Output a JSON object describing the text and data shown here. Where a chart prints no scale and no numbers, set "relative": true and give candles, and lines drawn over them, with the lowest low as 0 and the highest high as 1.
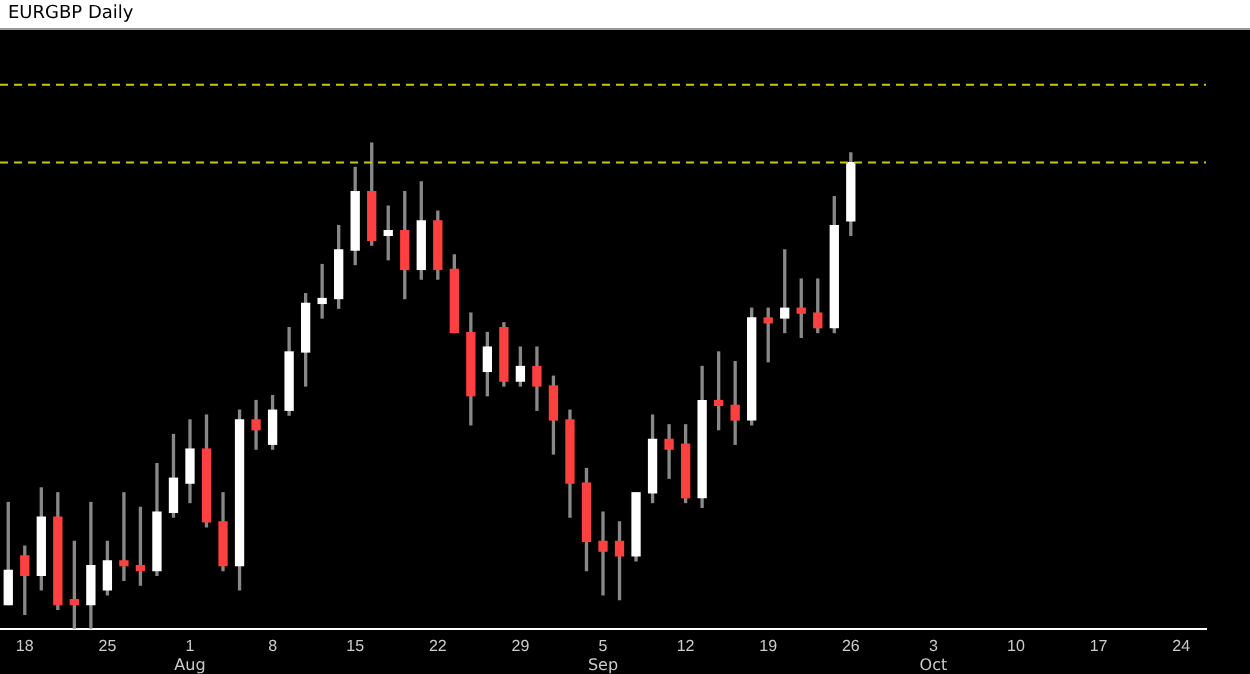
{
  "chart_data": {
    "type": "candlestick",
    "title": "EURGBP Daily",
    "relative": true,
    "categories": [
      null,
      "18",
      null,
      null,
      null,
      null,
      "25",
      null,
      null,
      null,
      null,
      "1",
      null,
      null,
      null,
      null,
      "8",
      null,
      null,
      null,
      null,
      "15",
      null,
      null,
      null,
      null,
      "22",
      null,
      null,
      null,
      null,
      "29",
      null,
      null,
      null,
      null,
      "5",
      null,
      null,
      null,
      null,
      "12",
      null,
      null,
      null,
      null,
      "19",
      null,
      null,
      null,
      null,
      "26",
      null,
      null,
      null,
      null,
      "3",
      null,
      null,
      null,
      null,
      "10",
      null,
      null,
      null,
      null,
      "17",
      null,
      null,
      null,
      null,
      "24",
      null
    ],
    "ohlc": [
      [
        0.05,
        0.26,
        0.05,
        0.12
      ],
      [
        0.15,
        0.17,
        0.03,
        0.11
      ],
      [
        0.11,
        0.29,
        0.08,
        0.23
      ],
      [
        0.23,
        0.28,
        0.04,
        0.05
      ],
      [
        0.06,
        0.18,
        0,
        0.05
      ],
      [
        0.05,
        0.26,
        0,
        0.13
      ],
      [
        0.08,
        0.18,
        0.07,
        0.14
      ],
      [
        0.14,
        0.28,
        0.1,
        0.13
      ],
      [
        0.13,
        0.25,
        0.09,
        0.12
      ],
      [
        0.12,
        0.34,
        0.11,
        0.24
      ],
      [
        0.24,
        0.4,
        0.23,
        0.31
      ],
      [
        0.3,
        0.43,
        0.26,
        0.37
      ],
      [
        0.37,
        0.44,
        0.21,
        0.22
      ],
      [
        0.22,
        0.28,
        0.12,
        0.13
      ],
      [
        0.13,
        0.45,
        0.08,
        0.43
      ],
      [
        0.43,
        0.47,
        0.37,
        0.41
      ],
      [
        0.38,
        0.48,
        0.37,
        0.45
      ],
      [
        0.45,
        0.62,
        0.44,
        0.57
      ],
      [
        0.57,
        0.69,
        0.5,
        0.67
      ],
      [
        0.67,
        0.75,
        0.64,
        0.68
      ],
      [
        0.68,
        0.83,
        0.66,
        0.78
      ],
      [
        0.78,
        0.95,
        0.75,
        0.9
      ],
      [
        0.9,
        1,
        0.79,
        0.8
      ],
      [
        0.81,
        0.87,
        0.76,
        0.82
      ],
      [
        0.82,
        0.9,
        0.68,
        0.74
      ],
      [
        0.74,
        0.92,
        0.72,
        0.84
      ],
      [
        0.84,
        0.86,
        0.72,
        0.74
      ],
      [
        0.74,
        0.77,
        0.61,
        0.61
      ],
      [
        0.61,
        0.65,
        0.42,
        0.48
      ],
      [
        0.53,
        0.61,
        0.48,
        0.58
      ],
      [
        0.62,
        0.63,
        0.5,
        0.51
      ],
      [
        0.51,
        0.58,
        0.5,
        0.54
      ],
      [
        0.54,
        0.58,
        0.45,
        0.5
      ],
      [
        0.5,
        0.52,
        0.36,
        0.43
      ],
      [
        0.43,
        0.45,
        0.23,
        0.3
      ],
      [
        0.3,
        0.33,
        0.12,
        0.18
      ],
      [
        0.18,
        0.24,
        0.07,
        0.16
      ],
      [
        0.18,
        0.22,
        0.06,
        0.15
      ],
      [
        0.15,
        0.28,
        0.14,
        0.28
      ],
      [
        0.28,
        0.44,
        0.26,
        0.39
      ],
      [
        0.39,
        0.42,
        0.31,
        0.37
      ],
      [
        0.38,
        0.42,
        0.26,
        0.27
      ],
      [
        0.27,
        0.54,
        0.25,
        0.47
      ],
      [
        0.47,
        0.57,
        0.41,
        0.46
      ],
      [
        0.46,
        0.55,
        0.38,
        0.43
      ],
      [
        0.43,
        0.66,
        0.42,
        0.64
      ],
      [
        0.64,
        0.66,
        0.55,
        0.63
      ],
      [
        0.64,
        0.78,
        0.61,
        0.66
      ],
      [
        0.66,
        0.72,
        0.6,
        0.65
      ],
      [
        0.65,
        0.72,
        0.61,
        0.62
      ],
      [
        0.62,
        0.89,
        0.61,
        0.83
      ],
      [
        0.84,
        0.98,
        0.81,
        0.96
      ],
      null,
      null,
      null,
      null,
      null,
      null,
      null,
      null,
      null,
      null,
      null,
      null,
      null,
      null,
      null,
      null,
      null,
      null,
      null,
      null,
      null
    ],
    "colors": [
      "#ffffff",
      "#ff4040",
      "#ffffff",
      "#ff4040",
      "#ff4040",
      "#ffffff",
      "#ffffff",
      "#ff4040",
      "#ff4040",
      "#ffffff",
      "#ffffff",
      "#ffffff",
      "#ff4040",
      "#ff4040",
      "#ffffff",
      "#ff4040",
      "#ffffff",
      "#ffffff",
      "#ffffff",
      "#ffffff",
      "#ffffff",
      "#ffffff",
      "#ff4040",
      "#ffffff",
      "#ff4040",
      "#ffffff",
      "#ff4040",
      "#ff4040",
      "#ff4040",
      "#ffffff",
      "#ff4040",
      "#ffffff",
      "#ff4040",
      "#ff4040",
      "#ff4040",
      "#ff4040",
      "#ff4040",
      "#ff4040",
      "#ffffff",
      "#ffffff",
      "#ff4040",
      "#ff4040",
      "#ffffff",
      "#ff4040",
      "#ff4040",
      "#ffffff",
      "#ff4040",
      "#ffffff",
      "#ff4040",
      "#ff4040",
      "#ffffff",
      "#ffffff",
      null,
      null,
      null,
      null,
      null,
      null,
      null,
      null,
      null,
      null,
      null,
      null,
      null,
      null,
      null,
      null,
      null,
      null,
      null,
      null,
      null
    ],
    "ref_lines": [
      {
        "axis": "y",
        "value": 1.12,
        "color": "#c8c800",
        "line_style": "dashed"
      },
      {
        "axis": "y",
        "value": 0.96,
        "color": "#c8c800",
        "line_style": "dashed"
      }
    ],
    "annotations": [
      "Aug",
      "Sep",
      "Oct"
    ],
    "grid": false,
    "legend": false
  }
}
